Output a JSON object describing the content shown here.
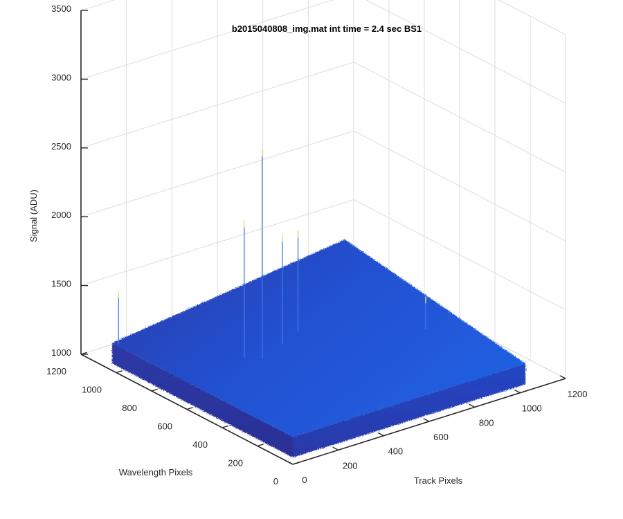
{
  "chart_data": {
    "type": "surface",
    "title": "b2015040808_img.mat int time = 2.4 sec   BS1",
    "xlabel": "Track Pixels",
    "ylabel": "Wavelength Pixels",
    "zlabel": "Signal (ADU)",
    "xlim": [
      0,
      1200
    ],
    "ylim": [
      0,
      1200
    ],
    "zlim": [
      1000,
      3500
    ],
    "xticks": [
      "0",
      "200",
      "400",
      "600",
      "800",
      "1000",
      "1200"
    ],
    "yticks": [
      "0",
      "200",
      "400",
      "600",
      "800",
      "1000",
      "1200"
    ],
    "zticks": [
      "1000",
      "1500",
      "2000",
      "2500",
      "3000",
      "3500"
    ],
    "grid": true,
    "surface": {
      "x_range": [
        0,
        1024
      ],
      "y_range": [
        0,
        1024
      ],
      "baseline_level": 1200,
      "edge_min_level": 1050,
      "far_corner_level": 1420,
      "colormap": "parula",
      "color_low": "#2b2f9e",
      "color_high": "#1f5fe0",
      "spike_color": "#f2e96b"
    },
    "spikes": [
      {
        "x": 10,
        "y": 1000,
        "z": 1590
      },
      {
        "x": 260,
        "y": 610,
        "z": 2230
      },
      {
        "x": 300,
        "y": 560,
        "z": 2760
      },
      {
        "x": 420,
        "y": 600,
        "z": 2050
      },
      {
        "x": 520,
        "y": 640,
        "z": 2000
      },
      {
        "x": 880,
        "y": 380,
        "z": 1510
      }
    ]
  }
}
